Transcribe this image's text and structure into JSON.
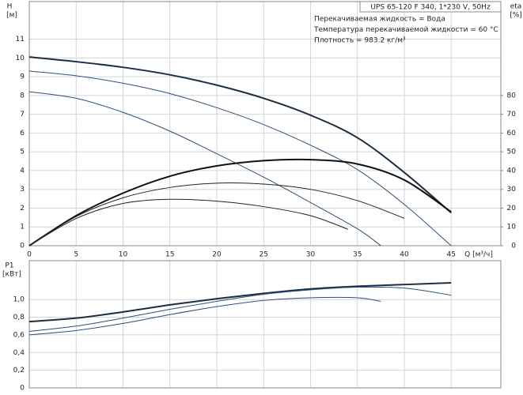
{
  "chart_data": [
    {
      "type": "line",
      "title": "UPS 65-120 F 340, 1*230 V, 50Hz",
      "annotations": [
        "Перекачиваемая жидкость = Вода",
        "Температура перекачиваемой жидкости = 60 °C",
        "Плотность = 983.2 кг/м³"
      ],
      "xlabel": "Q [м³/ч]",
      "ylabel": "H",
      "yunit": "[м]",
      "y2label": "eta",
      "y2unit": "[%]",
      "xlim": [
        0,
        50.3
      ],
      "xticks": [
        0,
        5,
        10,
        15,
        20,
        25,
        30,
        35,
        40,
        45
      ],
      "ylim": [
        0,
        13
      ],
      "yticks": [
        0,
        1,
        2,
        3,
        4,
        5,
        6,
        7,
        8,
        9,
        10,
        11
      ],
      "y2lim": [
        0,
        130
      ],
      "y2ticks": [
        0,
        10,
        20,
        30,
        40,
        50,
        60,
        70,
        80
      ],
      "grid": true,
      "series": [
        {
          "color": "#1b2e45",
          "linewidth": 2,
          "x": [
            0,
            5,
            10,
            15,
            20,
            25,
            30,
            35,
            40,
            45
          ],
          "values": [
            10.05,
            9.8,
            9.5,
            9.1,
            8.55,
            7.85,
            6.95,
            5.75,
            3.9,
            1.75
          ]
        },
        {
          "color": "#2b4f7a",
          "linewidth": 1,
          "x": [
            0,
            5,
            10,
            15,
            20,
            25,
            30,
            35,
            40,
            45
          ],
          "values": [
            9.3,
            9.05,
            8.65,
            8.1,
            7.35,
            6.45,
            5.35,
            4.05,
            2.2,
            0
          ]
        },
        {
          "color": "#2b4f7a",
          "linewidth": 1,
          "x": [
            0,
            5,
            10,
            15,
            20,
            25,
            30,
            35,
            37.5
          ],
          "values": [
            8.2,
            7.85,
            7.1,
            6.1,
            4.9,
            3.65,
            2.3,
            0.9,
            0
          ]
        },
        {
          "color": "#111111",
          "linewidth": 2,
          "axis": "y2",
          "x": [
            0,
            5,
            10,
            15,
            20,
            25,
            30,
            35,
            40,
            45
          ],
          "values": [
            0,
            16,
            28,
            37,
            42.5,
            45.3,
            45.8,
            43.5,
            35,
            18
          ]
        },
        {
          "color": "#222222",
          "linewidth": 1,
          "axis": "y2",
          "x": [
            0,
            5,
            10,
            15,
            20,
            25,
            30,
            35,
            40
          ],
          "values": [
            0,
            15.5,
            25.5,
            31,
            33.3,
            32.8,
            30,
            24,
            14.6
          ]
        },
        {
          "color": "#222222",
          "linewidth": 1,
          "axis": "y2",
          "x": [
            0,
            5,
            10,
            15,
            20,
            25,
            30,
            34
          ],
          "values": [
            0,
            14.5,
            22.5,
            24.7,
            23.7,
            20.8,
            16,
            8.75
          ]
        }
      ]
    },
    {
      "type": "line",
      "ylabel": "P1",
      "yunit": "[кВт]",
      "xlim": [
        0,
        50.3
      ],
      "xticks": [
        0,
        5,
        10,
        15,
        20,
        25,
        30,
        35,
        40,
        45
      ],
      "ylim": [
        0,
        1.44
      ],
      "yticks": [
        0,
        {
          "value": 0.2,
          "label": "0,2"
        },
        {
          "value": 0.4,
          "label": "0,4"
        },
        {
          "value": 0.6,
          "label": "0,6"
        },
        {
          "value": 0.8,
          "label": "0,8"
        },
        {
          "value": 1.0,
          "label": "1,0"
        }
      ],
      "grid": true,
      "series": [
        {
          "color": "#1b2e45",
          "linewidth": 2,
          "x": [
            0,
            5,
            10,
            15,
            20,
            25,
            30,
            35,
            40,
            45
          ],
          "values": [
            0.75,
            0.79,
            0.86,
            0.94,
            1.01,
            1.07,
            1.12,
            1.15,
            1.17,
            1.19
          ]
        },
        {
          "color": "#2b4f7a",
          "linewidth": 1,
          "x": [
            0,
            5,
            10,
            15,
            20,
            25,
            30,
            35,
            40,
            45
          ],
          "values": [
            0.64,
            0.7,
            0.79,
            0.89,
            0.98,
            1.06,
            1.11,
            1.14,
            1.13,
            1.05
          ]
        },
        {
          "color": "#2b4f7a",
          "linewidth": 1,
          "x": [
            0,
            5,
            10,
            15,
            20,
            25,
            30,
            35,
            37.5
          ],
          "values": [
            0.6,
            0.65,
            0.73,
            0.83,
            0.92,
            0.99,
            1.02,
            1.02,
            0.98
          ]
        }
      ]
    }
  ]
}
